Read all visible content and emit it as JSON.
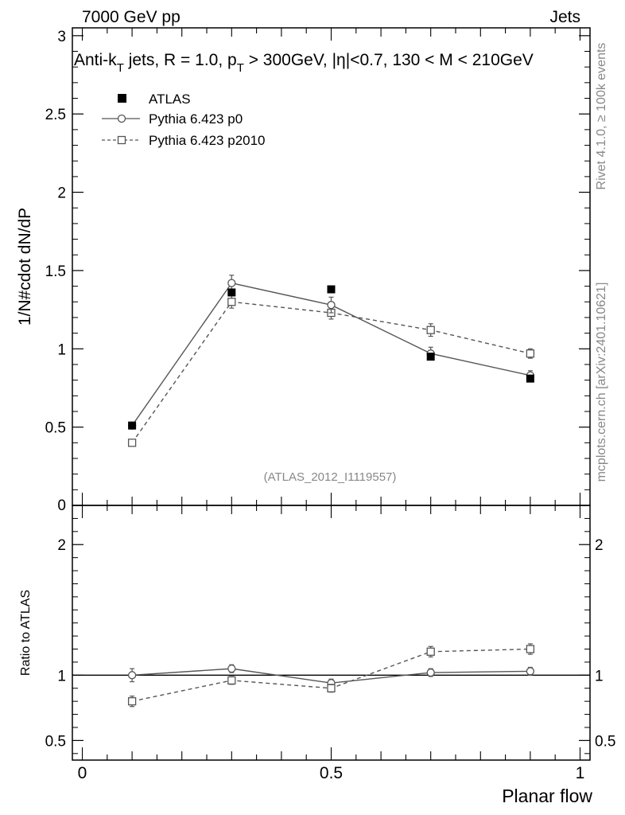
{
  "header": {
    "left": "7000 GeV pp",
    "right": "Jets"
  },
  "title_parts": {
    "p1": "Anti-k",
    "sub1": "T",
    "p2": " jets, R = 1.0, p",
    "sub2": "T",
    "p3": " > 300GeV, |",
    "eta": "η",
    "p4": "|<0.7, 130 < M < 210GeV"
  },
  "side_labels": {
    "rivet": "Rivet 4.1.0, ≥ 100k events",
    "mcplots": "mcplots.cern.ch [arXiv:2401.10621]"
  },
  "watermark": "(ATLAS_2012_I1119557)",
  "colors": {
    "data": "#000000",
    "mc": "#555555",
    "text_grey": "#888888"
  },
  "chart_data": [
    {
      "type": "scatter",
      "panel": "main",
      "ylabel": "1/N#cdot dN/dP",
      "ylim": [
        0,
        3.05
      ],
      "yticks": [
        {
          "v": 0.5,
          "label": "0.5"
        },
        {
          "v": 1,
          "label": "1"
        },
        {
          "v": 1.5,
          "label": "1.5"
        },
        {
          "v": 2,
          "label": "2"
        },
        {
          "v": 2.5,
          "label": "2.5"
        },
        {
          "v": 3,
          "label": "3"
        },
        {
          "v": 0,
          "label": "0"
        }
      ],
      "xlim": [
        -0.02,
        1.02
      ],
      "legend_position": "top-left",
      "series": [
        {
          "name": "ATLAS",
          "style": "filled-square",
          "line": "none",
          "x": [
            0.1,
            0.3,
            0.5,
            0.7,
            0.9
          ],
          "y": [
            0.51,
            1.36,
            1.38,
            0.95,
            0.81
          ],
          "err": [
            0.02,
            0.02,
            0.02,
            0.02,
            0.02
          ]
        },
        {
          "name": "Pythia 6.423 p0",
          "style": "open-circle",
          "line": "solid",
          "x": [
            0.1,
            0.3,
            0.5,
            0.7,
            0.9
          ],
          "y": [
            0.51,
            1.42,
            1.28,
            0.97,
            0.83
          ],
          "err": [
            0.02,
            0.05,
            0.05,
            0.04,
            0.03
          ]
        },
        {
          "name": "Pythia 6.423 p2010",
          "style": "open-square",
          "line": "dashed",
          "x": [
            0.1,
            0.3,
            0.5,
            0.7,
            0.9
          ],
          "y": [
            0.4,
            1.3,
            1.23,
            1.12,
            0.97
          ],
          "err": [
            0.02,
            0.04,
            0.04,
            0.04,
            0.03
          ]
        }
      ]
    },
    {
      "type": "scatter",
      "panel": "ratio",
      "ylabel": "Ratio to ATLAS",
      "xlabel": "Planar flow",
      "ylim": [
        0.35,
        2.3
      ],
      "yticks": [
        {
          "v": 0.5,
          "label": "0.5"
        },
        {
          "v": 1,
          "label": "1"
        },
        {
          "v": 2,
          "label": "2"
        }
      ],
      "xlim": [
        -0.02,
        1.02
      ],
      "xticks": [
        {
          "v": 0,
          "label": "0"
        },
        {
          "v": 0.5,
          "label": "0.5"
        },
        {
          "v": 1,
          "label": "1"
        }
      ],
      "reference_line": 1,
      "series": [
        {
          "name": "Pythia 6.423 p0",
          "style": "open-circle",
          "line": "solid",
          "x": [
            0.1,
            0.3,
            0.5,
            0.7,
            0.9
          ],
          "y": [
            1.0,
            1.05,
            0.94,
            1.02,
            1.03
          ],
          "err": [
            0.05,
            0.03,
            0.03,
            0.03,
            0.03
          ]
        },
        {
          "name": "Pythia 6.423 p2010",
          "style": "open-square",
          "line": "dashed",
          "x": [
            0.1,
            0.3,
            0.5,
            0.7,
            0.9
          ],
          "y": [
            0.8,
            0.96,
            0.9,
            1.18,
            1.2
          ],
          "err": [
            0.04,
            0.03,
            0.03,
            0.04,
            0.04
          ]
        }
      ]
    }
  ]
}
